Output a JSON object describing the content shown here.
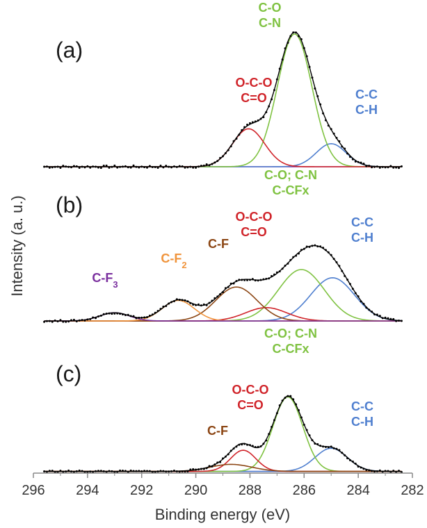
{
  "chart_data": {
    "type": "line",
    "xlabel": "Binding energy (eV)",
    "ylabel": "Intensity (a. u.)",
    "xlim": [
      296,
      282
    ],
    "x_reversed": true,
    "xticks": [
      "296",
      "294",
      "292",
      "290",
      "288",
      "286",
      "284",
      "282"
    ],
    "yticks": [],
    "grid": false,
    "colors": {
      "envelope": "#000000",
      "data": "#000000",
      "C-O/C-N": "#7fc241",
      "O-C-O/C=O": "#d0242a",
      "C-C/C-H": "#4f7fcf",
      "C-F": "#8b4513",
      "C-F2": "#f0943c",
      "C-F3": "#7a2f9e",
      "background": "#7a2f9e"
    },
    "panels": [
      {
        "label": "(a)",
        "background": 0.0,
        "peaks": [
          {
            "name": "C-C / C-H",
            "color_key": "C-C/C-H",
            "center": 285.0,
            "fwhm": 1.3,
            "height": 0.17
          },
          {
            "name": "C-O / C-N",
            "color_key": "C-O/C-N",
            "center": 286.35,
            "fwhm": 1.5,
            "height": 0.98
          },
          {
            "name": "O-C-O / C=O",
            "color_key": "O-C-O/C=O",
            "center": 288.05,
            "fwhm": 1.4,
            "height": 0.28
          }
        ],
        "annotations": [
          {
            "lines": [
              "C-O",
              "C-N"
            ],
            "color_key": "C-O/C-N"
          },
          {
            "lines": [
              "O-C-O",
              "C=O"
            ],
            "color_key": "O-C-O/C=O"
          },
          {
            "lines": [
              "C-C",
              "C-H"
            ],
            "color_key": "C-C/C-H"
          }
        ]
      },
      {
        "label": "(b)",
        "background": 0.0,
        "peaks": [
          {
            "name": "C-C / C-H",
            "color_key": "C-C/C-H",
            "center": 284.95,
            "fwhm": 1.9,
            "height": 0.42
          },
          {
            "name": "C-O; C-N / C-CFx",
            "color_key": "C-O/C-N",
            "center": 286.1,
            "fwhm": 2.0,
            "height": 0.5
          },
          {
            "name": "O-C-O / C=O",
            "color_key": "O-C-O/C=O",
            "center": 287.4,
            "fwhm": 1.8,
            "height": 0.13
          },
          {
            "name": "C-F",
            "color_key": "C-F",
            "center": 288.5,
            "fwhm": 1.8,
            "height": 0.33
          },
          {
            "name": "C-F2",
            "color_key": "C-F2",
            "center": 290.65,
            "fwhm": 1.4,
            "height": 0.2
          },
          {
            "name": "C-F3",
            "color_key": "C-F3",
            "center": 293.0,
            "fwhm": 1.3,
            "height": 0.08
          }
        ],
        "annotations": [
          {
            "lines": [
              "C-F3"
            ],
            "color_key": "C-F3"
          },
          {
            "lines": [
              "C-F2"
            ],
            "color_key": "C-F2"
          },
          {
            "lines": [
              "C-F"
            ],
            "color_key": "C-F"
          },
          {
            "lines": [
              "O-C-O",
              "C=O"
            ],
            "color_key": "O-C-O/C=O"
          },
          {
            "lines": [
              "C-O; C-N",
              "C-CFx"
            ],
            "color_key": "C-O/C-N"
          },
          {
            "lines": [
              "C-C",
              "C-H"
            ],
            "color_key": "C-C/C-H"
          }
        ]
      },
      {
        "label": "(c)",
        "background": 0.01,
        "peaks": [
          {
            "name": "C-C / C-H",
            "color_key": "C-C/C-H",
            "center": 285.0,
            "fwhm": 1.4,
            "height": 0.23
          },
          {
            "name": "C-O; C-N / C-CFx",
            "color_key": "C-O/C-N",
            "center": 286.6,
            "fwhm": 1.3,
            "height": 0.74
          },
          {
            "name": "O-C-O / C=O",
            "color_key": "O-C-O/C=O",
            "center": 288.25,
            "fwhm": 1.1,
            "height": 0.21
          },
          {
            "name": "C-F",
            "color_key": "C-F",
            "center": 288.7,
            "fwhm": 1.8,
            "height": 0.07
          }
        ],
        "annotations": [
          {
            "lines": [
              "C-F"
            ],
            "color_key": "C-F"
          },
          {
            "lines": [
              "O-C-O",
              "C=O"
            ],
            "color_key": "O-C-O/C=O"
          },
          {
            "lines": [
              "C-O; C-N",
              "C-CFx"
            ],
            "color_key": "C-O/C-N"
          },
          {
            "lines": [
              "C-C",
              "C-H"
            ],
            "color_key": "C-C/C-H"
          }
        ]
      }
    ]
  }
}
